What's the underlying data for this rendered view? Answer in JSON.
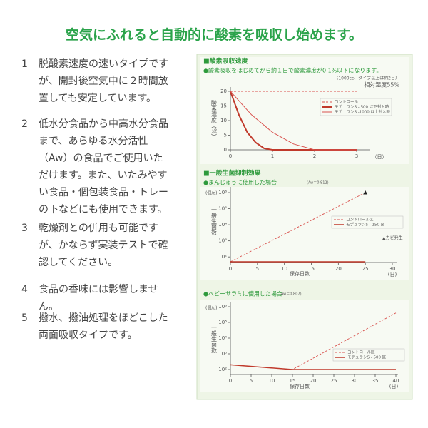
{
  "title": "空気にふれると自動的に酸素を吸収し始めます。",
  "points": [
    {
      "number": "1",
      "text": "脱酸素速度の速いタイプですが、開封後空気中に２時間放置しても安定しています。"
    },
    {
      "number": "2",
      "text": "低水分食品から中高水分食品まで、あらゆる水分活性（Aw）の食品でご使用いただけます。また、いたみやすい食品・個包装食品・トレーの下などにも使用できます。"
    },
    {
      "number": "3",
      "text": "乾燥剤との併用も可能ですが、かならず実装テストで確認してください。"
    },
    {
      "number": "4",
      "text": "食品の香味には影響しません。"
    },
    {
      "number": "5",
      "text": "撥水、撥油処理をほどこした両面吸収タイプです。"
    }
  ],
  "chart_data": [
    {
      "type": "line",
      "section_title": "■酸素吸収速度",
      "subtitle": "●酸素吸収をはじめてから約１日で酸素濃度が0.1%以下になります。",
      "note": "（1000cc、タイプ以上は約2日）",
      "condition": "相対湿度55%",
      "y_label": "酸素濃度（%）",
      "x_unit": "（日）",
      "xlim": [
        0,
        3
      ],
      "xticks": [
        0,
        1,
        2,
        3
      ],
      "ylim": [
        0,
        20
      ],
      "yticks": [
        0,
        5,
        10,
        15,
        20
      ],
      "series": [
        {
          "name": "コントロール",
          "color": "#d9534f",
          "dash": true,
          "x": [
            0,
            3
          ],
          "values": [
            20,
            20
          ]
        },
        {
          "name": "モデュランS - 500 以下封入時",
          "color": "#c0392b",
          "width": 2,
          "x": [
            0,
            0.2,
            0.4,
            0.6,
            0.8,
            1,
            2,
            3
          ],
          "values": [
            20,
            12,
            6,
            2.5,
            0.5,
            0,
            0,
            0
          ]
        },
        {
          "name": "モデュランS -1000 以上封入時",
          "color": "#d9534f",
          "width": 1,
          "x": [
            0,
            0.5,
            1,
            1.5,
            2,
            3
          ],
          "values": [
            20,
            12,
            6,
            2,
            0,
            0
          ]
        }
      ]
    },
    {
      "type": "line",
      "section_title": "■一般生菌抑制効果",
      "subtitle": "●まんじゅうに使用した場合",
      "aw": "(Aw＝0.812)",
      "y_unit": "(個/g)",
      "y_label": "一般生菌数",
      "x_label": "保存日数",
      "x_unit": "(日)",
      "log": true,
      "annotation": "▲カビ発生",
      "xlim": [
        0,
        30
      ],
      "xticks": [
        0,
        5,
        10,
        15,
        20,
        25,
        30
      ],
      "ylim": [
        45,
        1000000
      ],
      "yticks": [
        {
          "value": 100,
          "label": "10²"
        },
        {
          "value": 1000,
          "label": "10³"
        },
        {
          "value": 10000,
          "label": "10⁴"
        },
        {
          "value": 100000,
          "label": "10⁵"
        },
        {
          "value": 1000000,
          "label": "10⁶"
        }
      ],
      "series": [
        {
          "name": "コントロール区",
          "color": "#d9534f",
          "dash": true,
          "end_marker": "triangle",
          "x": [
            0,
            25
          ],
          "values": [
            50,
            1000000
          ]
        },
        {
          "name": "モデュランS - 150 区",
          "color": "#c0392b",
          "width": 1.5,
          "x": [
            0,
            25
          ],
          "values": [
            50,
            50
          ]
        }
      ]
    },
    {
      "type": "line",
      "subtitle": "●ベビーサラミに使用した場合",
      "aw": "(Aw＝0.807)",
      "y_unit": "(個/g)",
      "y_label": "一般生菌数",
      "x_label": "保存日数",
      "x_unit": "(日)",
      "log": true,
      "xlim": [
        0,
        40
      ],
      "xticks": [
        0,
        5,
        10,
        15,
        20,
        25,
        30,
        35,
        40
      ],
      "ylim": [
        48,
        1000000
      ],
      "yticks": [
        {
          "value": 100,
          "label": "10²"
        },
        {
          "value": 1000,
          "label": "10³"
        },
        {
          "value": 10000,
          "label": "10⁴"
        },
        {
          "value": 100000,
          "label": "10⁵"
        },
        {
          "value": 1000000,
          "label": "10⁶"
        }
      ],
      "series": [
        {
          "name": "コントロール区",
          "color": "#d9534f",
          "dash": true,
          "x": [
            0,
            15,
            40
          ],
          "values": [
            200,
            100,
            400000
          ]
        },
        {
          "name": "モデュランS - 500 区",
          "color": "#c0392b",
          "width": 1.5,
          "x": [
            0,
            15,
            40
          ],
          "values": [
            200,
            100,
            100
          ]
        }
      ]
    }
  ]
}
